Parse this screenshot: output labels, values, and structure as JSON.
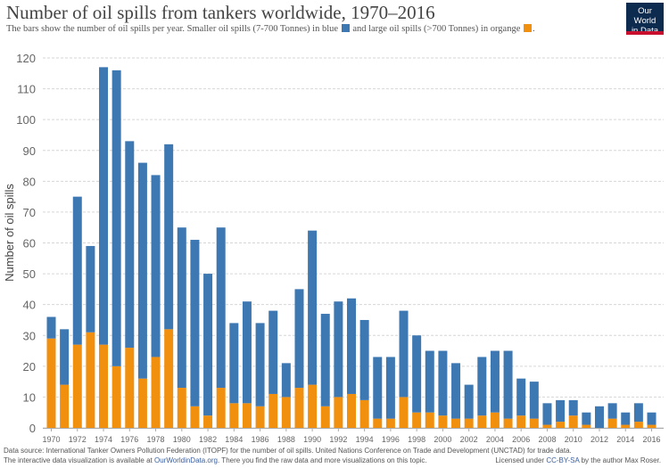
{
  "header": {
    "title": "Number of oil spills from tankers worldwide, 1970–2016",
    "subtitle_part1": "The bars show the number of oil spills per year.  Smaller oil spills (7-700 Tonnes) in blue",
    "subtitle_part2": "and large oil spills (>700 Tonnes) in organge",
    "subtitle_part3": ".",
    "logo_line1": "Our World",
    "logo_line2": "in Data"
  },
  "colors": {
    "small": "#3e78b2",
    "large": "#f18f0f",
    "grid": "#d6d6d6",
    "axis_text": "#666666",
    "logo_bg": "#0d2a4f",
    "logo_accent": "#c8102e"
  },
  "chart_data": {
    "type": "bar",
    "stacked": true,
    "title": "Number of oil spills from tankers worldwide, 1970–2016",
    "xlabel": "",
    "ylabel": "Number of oil spills",
    "ylim": [
      0,
      120
    ],
    "yticks": [
      0,
      10,
      20,
      30,
      40,
      50,
      60,
      70,
      80,
      90,
      100,
      110,
      120
    ],
    "grid": true,
    "categories": [
      1970,
      1971,
      1972,
      1973,
      1974,
      1975,
      1976,
      1977,
      1978,
      1979,
      1980,
      1981,
      1982,
      1983,
      1984,
      1985,
      1986,
      1987,
      1988,
      1989,
      1990,
      1991,
      1992,
      1993,
      1994,
      1995,
      1996,
      1997,
      1998,
      1999,
      2000,
      2001,
      2002,
      2003,
      2004,
      2005,
      2006,
      2007,
      2008,
      2009,
      2010,
      2011,
      2012,
      2013,
      2014,
      2015,
      2016
    ],
    "xtick_labels": [
      "1970",
      "1972",
      "1974",
      "1976",
      "1978",
      "1980",
      "1982",
      "1984",
      "1986",
      "1988",
      "1990",
      "1992",
      "1994",
      "1996",
      "1998",
      "2000",
      "2002",
      "2004",
      "2006",
      "2008",
      "2010",
      "2012",
      "2014",
      "2016"
    ],
    "series": [
      {
        "name": "Large oil spills (>700 Tonnes)",
        "color": "#f18f0f",
        "values": [
          29,
          14,
          27,
          31,
          27,
          20,
          26,
          16,
          23,
          32,
          13,
          7,
          4,
          13,
          8,
          8,
          7,
          11,
          10,
          13,
          14,
          7,
          10,
          11,
          9,
          3,
          3,
          10,
          5,
          5,
          4,
          3,
          3,
          4,
          5,
          3,
          4,
          3,
          1,
          2,
          4,
          1,
          0,
          3,
          1,
          2,
          1
        ]
      },
      {
        "name": "Small oil spills (7-700 Tonnes)",
        "color": "#3e78b2",
        "values": [
          7,
          18,
          48,
          28,
          90,
          96,
          67,
          70,
          59,
          60,
          52,
          54,
          46,
          52,
          26,
          33,
          27,
          27,
          11,
          32,
          50,
          30,
          31,
          31,
          26,
          20,
          20,
          28,
          25,
          20,
          21,
          18,
          11,
          19,
          20,
          22,
          12,
          12,
          7,
          7,
          5,
          4,
          7,
          5,
          4,
          6,
          4
        ]
      }
    ],
    "totals": [
      36,
      32,
      75,
      59,
      117,
      116,
      93,
      86,
      82,
      92,
      65,
      61,
      50,
      65,
      34,
      41,
      34,
      38,
      21,
      45,
      64,
      37,
      41,
      42,
      35,
      23,
      23,
      38,
      30,
      25,
      25,
      21,
      14,
      23,
      25,
      25,
      16,
      15,
      8,
      9,
      9,
      5,
      7,
      8,
      5,
      8,
      5
    ]
  },
  "footer": {
    "line1": "Data source: International Tanker Owners Pollution Federation (ITOPF) for the number of oil spills. United Nations Conference on Trade and Development (UNCTAD) for trade data.",
    "line2_pre": "The interactive data visualization is available at",
    "line2_link": "OurWorldinData.org",
    "line2_post": ". There you find the raw data and more visualizations on this topic.",
    "license_pre": "Licensed under",
    "license_link": "CC-BY-SA",
    "license_post": "by the author Max Roser."
  }
}
